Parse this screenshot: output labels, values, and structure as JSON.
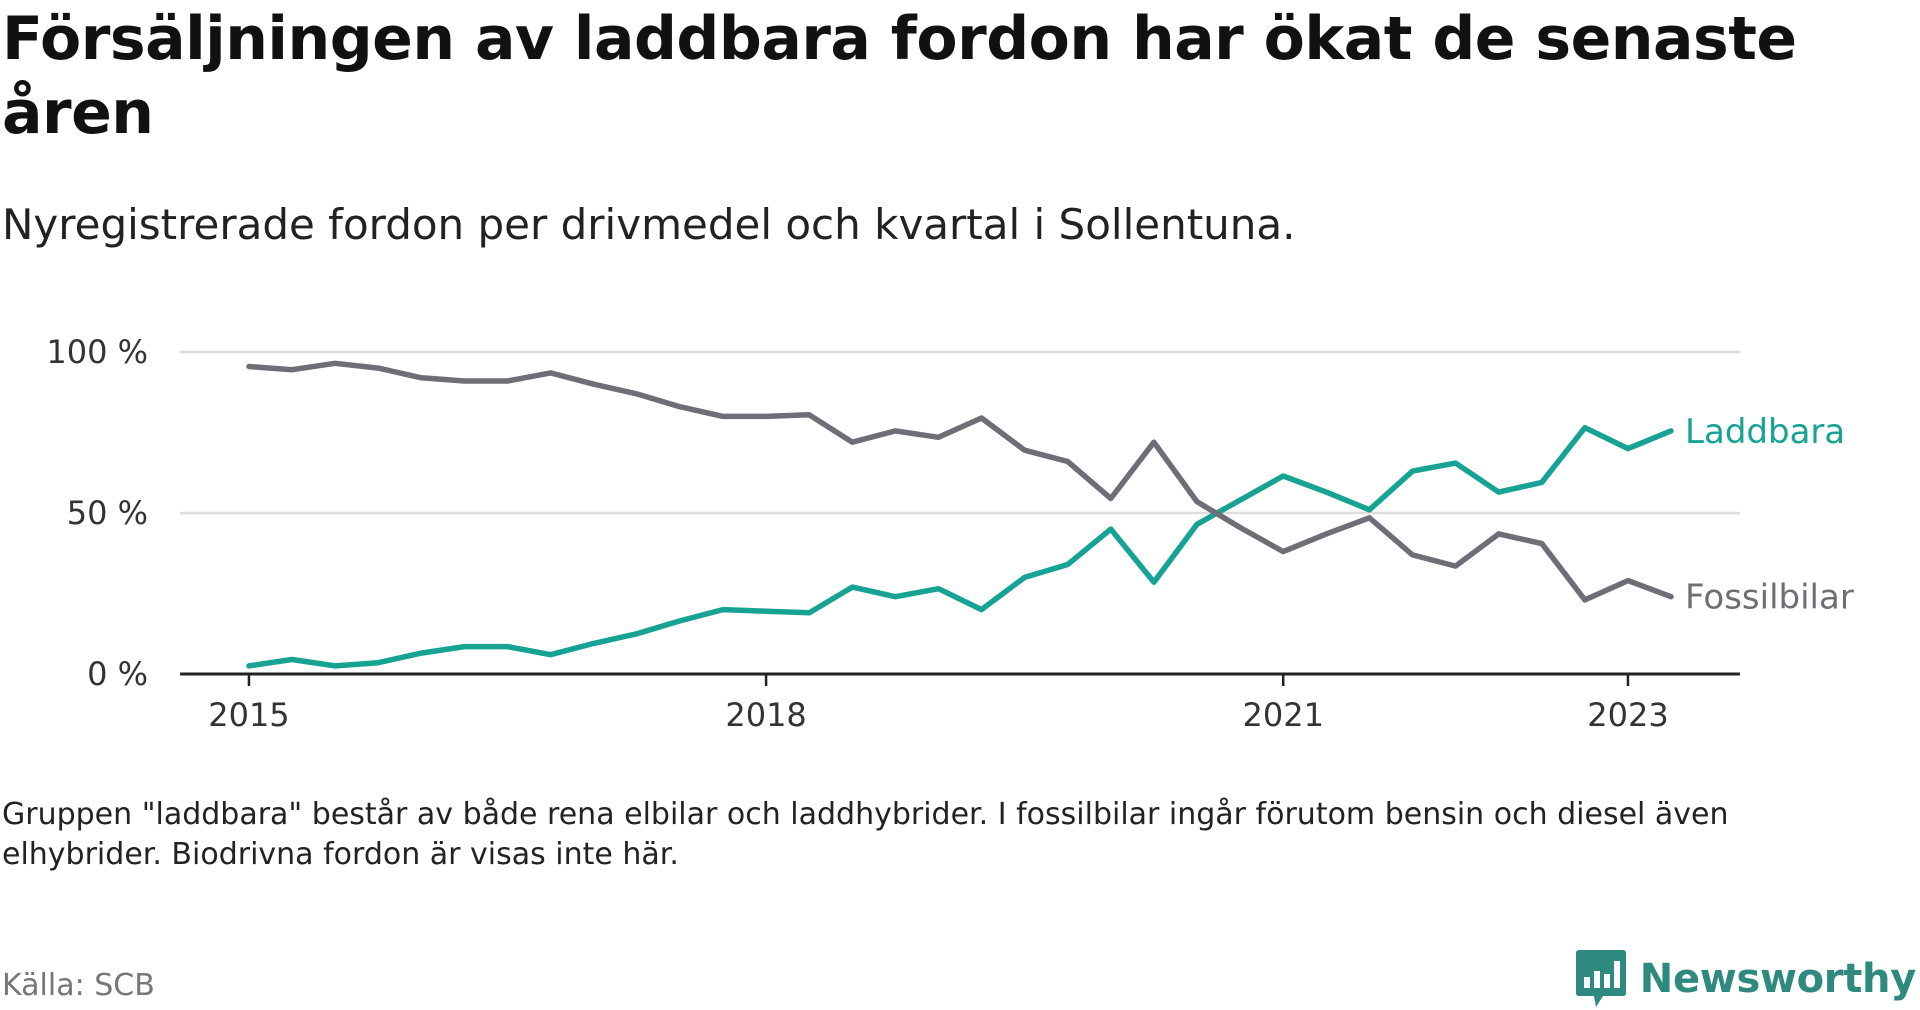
{
  "title": "Försäljningen av laddbara fordon har ökat de senaste åren",
  "subtitle": "Nyregistrerade fordon per drivmedel och kvartal i Sollentuna.",
  "note": "Gruppen \"laddbara\" består av både rena elbilar och laddhybrider. I fossilbilar ingår förutom bensin och diesel även elhybrider. Biodrivna fordon är visas inte här.",
  "source": "Källa: SCB",
  "brand": "Newsworthy",
  "colors": {
    "laddbara": "#16a394",
    "fossil": "#6f6e76",
    "grid": "#dddddd",
    "axis": "#222222",
    "brand": "#2e8a7f"
  },
  "chart_data": {
    "type": "line",
    "title": "Försäljningen av laddbara fordon har ökat de senaste åren",
    "xlabel": "",
    "ylabel": "",
    "ylim": [
      0,
      100
    ],
    "y_ticks": [
      0,
      50,
      100
    ],
    "y_tick_labels": [
      "0 %",
      "50 %",
      "100 %"
    ],
    "x_start": 2015,
    "x_end": 2023.25,
    "x_range": [
      2014.6,
      2023.65
    ],
    "x_ticks": [
      2015,
      2018,
      2021,
      2023
    ],
    "x_tick_labels": [
      "2015",
      "2018",
      "2021",
      "2023"
    ],
    "grid": true,
    "series": [
      {
        "name": "Laddbara",
        "label": "Laddbara",
        "color": "#16a394",
        "values": [
          2.5,
          4.5,
          2.5,
          3.5,
          6.5,
          8.5,
          8.5,
          6,
          9.5,
          12.5,
          16.5,
          20,
          19.5,
          19,
          27,
          24,
          26.5,
          20,
          30,
          34,
          45,
          28.5,
          46.5,
          54,
          61.5,
          56.5,
          51,
          63,
          65.5,
          56.5,
          59.5,
          76.5,
          70,
          75.5
        ]
      },
      {
        "name": "Fossilbilar",
        "label": "Fossilbilar",
        "color": "#6f6e76",
        "values": [
          95.5,
          94.5,
          96.5,
          95,
          92,
          91,
          91,
          93.5,
          90,
          87,
          83,
          80,
          80,
          80.5,
          72,
          75.5,
          73.5,
          79.5,
          69.5,
          66,
          54.5,
          72,
          53.5,
          45.5,
          38,
          43.5,
          48.5,
          37,
          33.5,
          43.5,
          40.5,
          23,
          29,
          24
        ]
      }
    ]
  }
}
